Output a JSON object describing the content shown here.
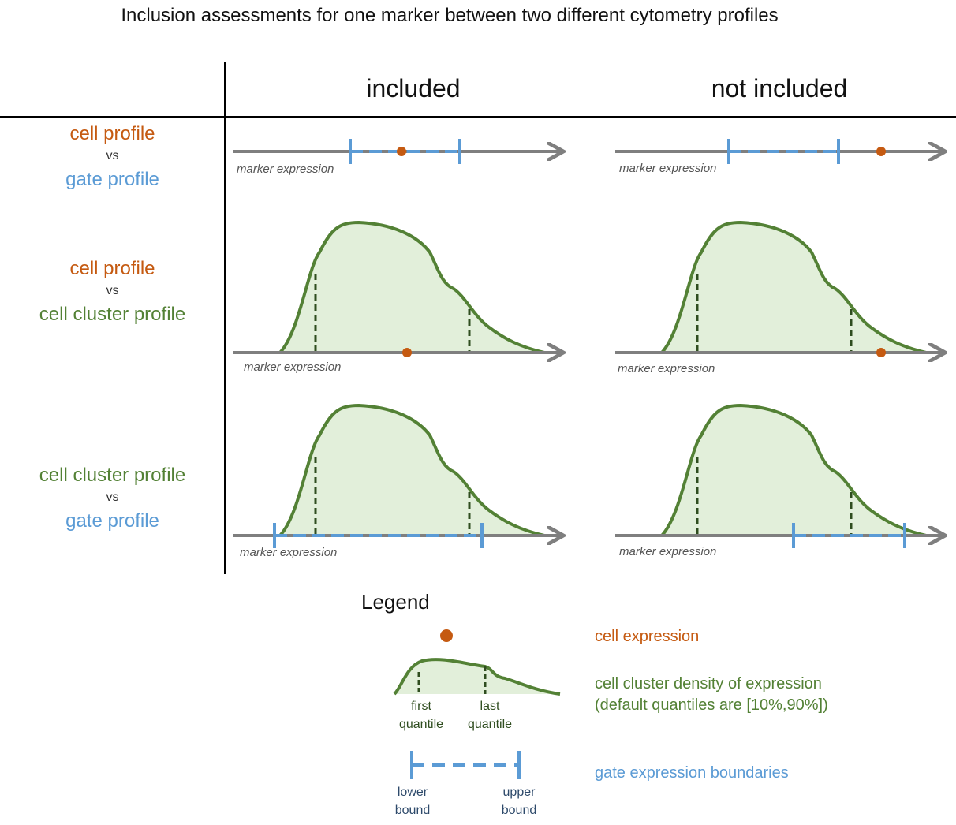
{
  "title": "Inclusion assessments for one marker between two different cytometry profiles",
  "columns": {
    "included": "included",
    "not_included": "not included"
  },
  "rows": {
    "r1": {
      "top": "cell profile",
      "vs": "vs",
      "bottom": "gate profile"
    },
    "r2": {
      "top": "cell profile",
      "vs": "vs",
      "bottom": "cell cluster profile"
    },
    "r3": {
      "top": "cell cluster profile",
      "vs": "vs",
      "bottom": "gate profile"
    }
  },
  "axis_label": "marker expression",
  "legend": {
    "title": "Legend",
    "cell_expression": "cell expression",
    "density_line1": "cell cluster density of expression",
    "density_line2": "(default quantiles are [10%,90%])",
    "first_quantile_1": "first",
    "first_quantile_2": "quantile",
    "last_quantile_1": "last",
    "last_quantile_2": "quantile",
    "gate_boundaries": "gate expression boundaries",
    "lower_bound_1": "lower",
    "lower_bound_2": "bound",
    "upper_bound_1": "upper",
    "upper_bound_2": "bound"
  },
  "colors": {
    "cell": "#c55a11",
    "gate": "#5b9bd5",
    "cluster_line": "#538135",
    "cluster_fill": "#e2efda",
    "axis": "#7f7f7f"
  }
}
